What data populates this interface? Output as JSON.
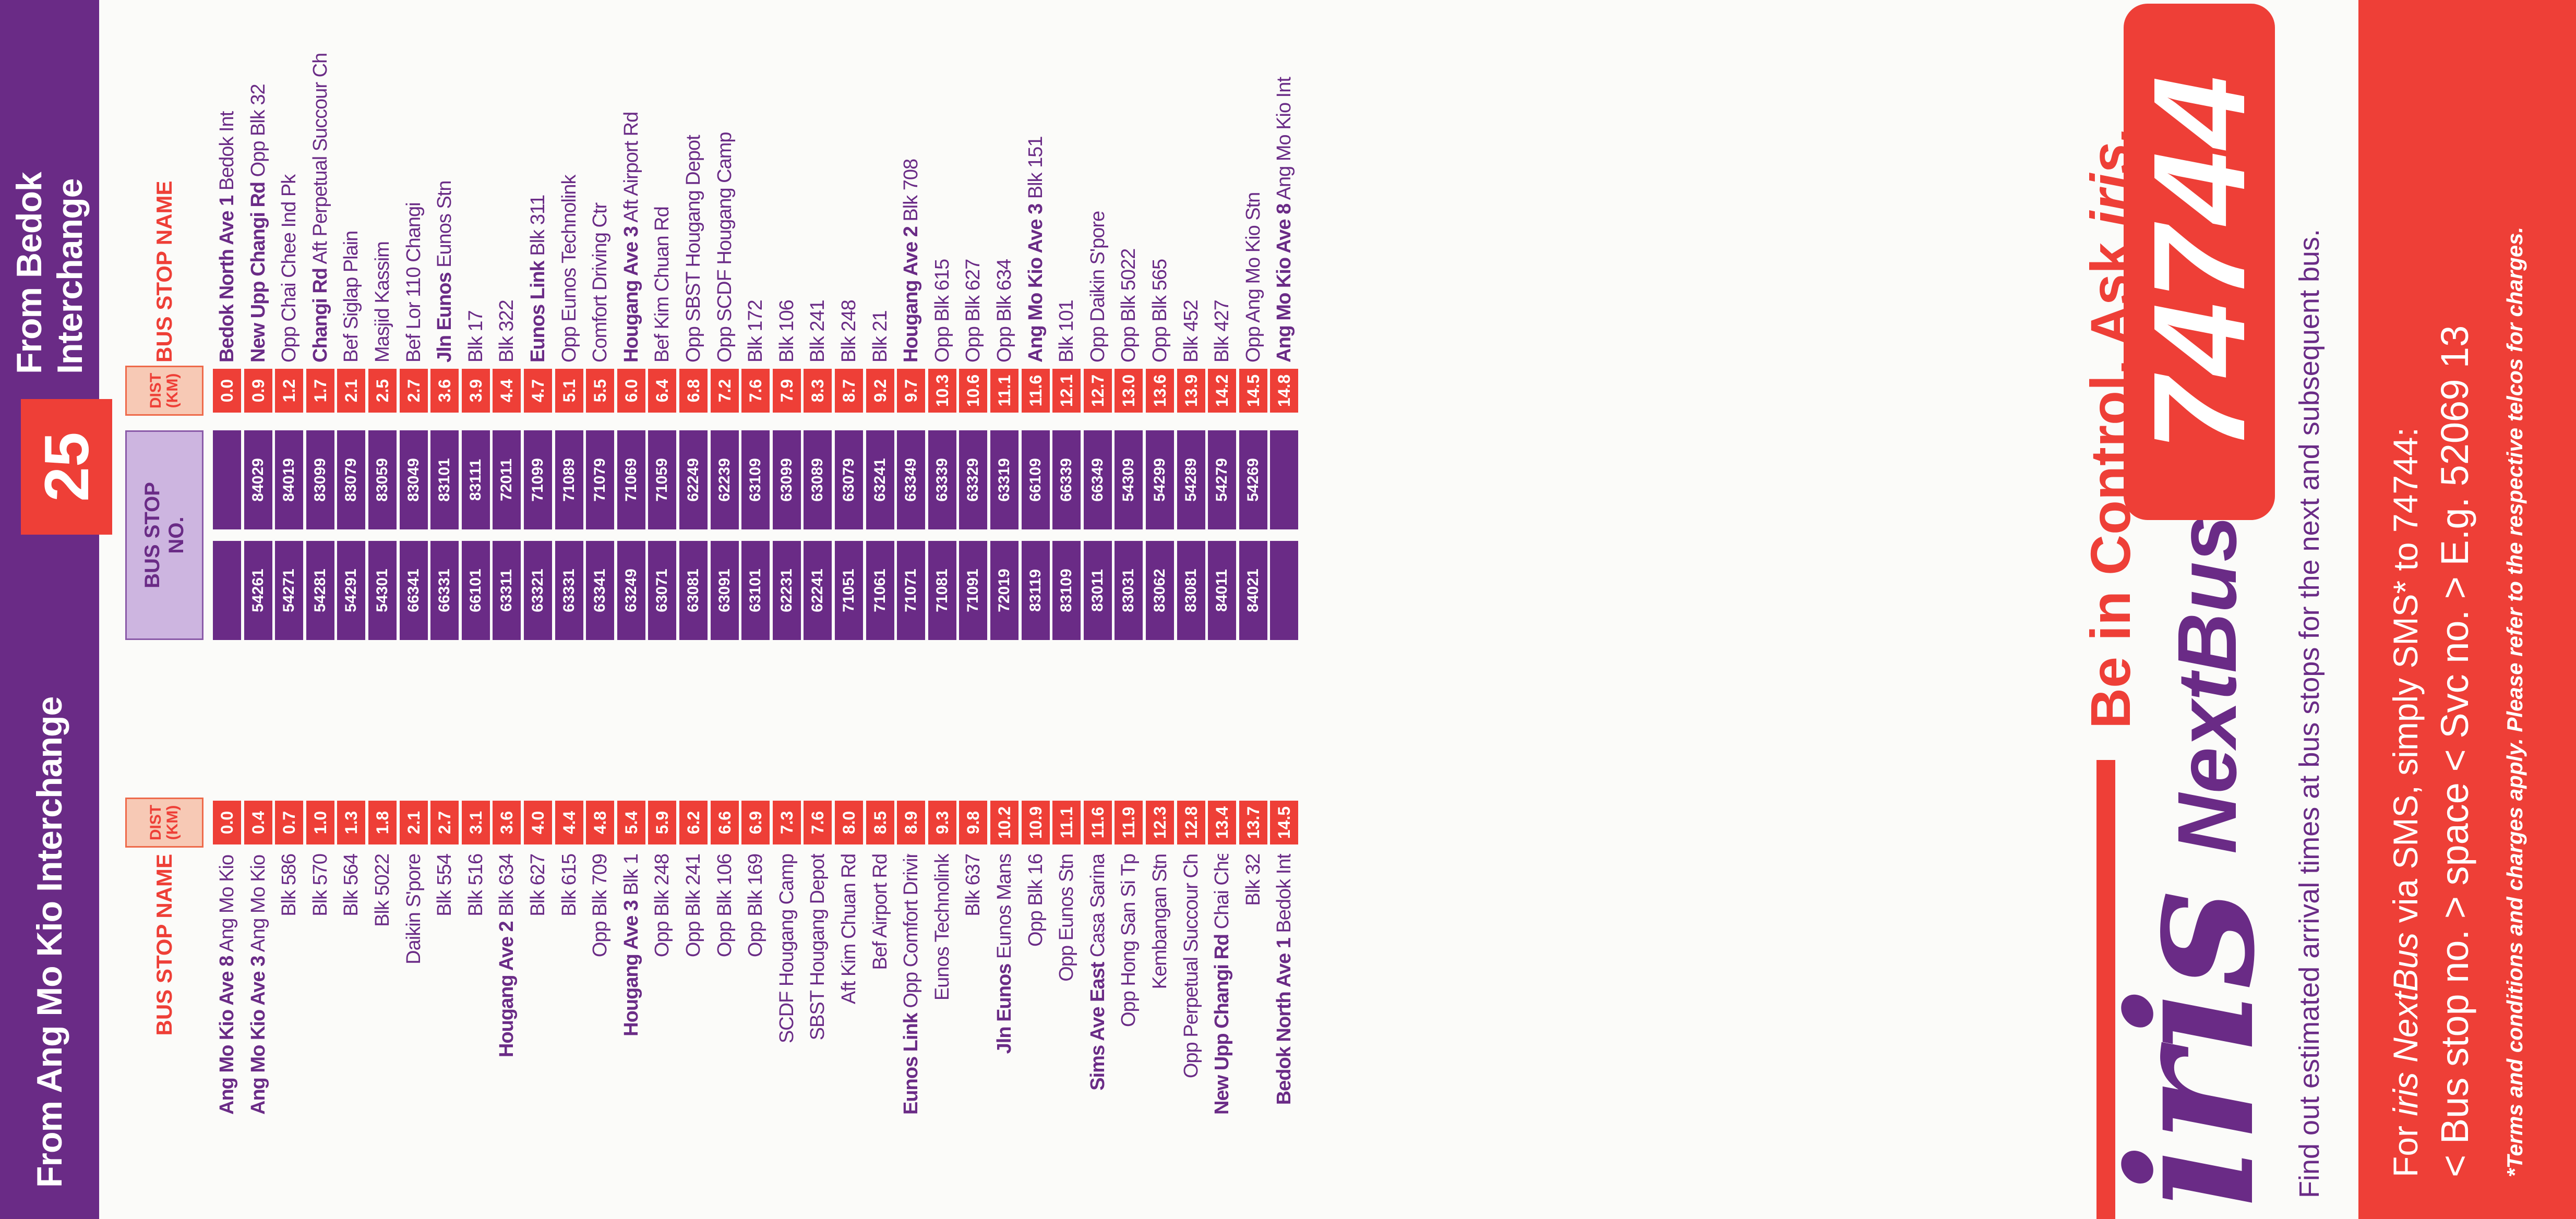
{
  "route": "25",
  "left_heading": "From Ang Mo Kio Interchange",
  "right_heading": "From Bedok Interchange",
  "headers": {
    "bus_stop_name": "BUS STOP NAME",
    "dist": "DIST",
    "km": "(KM)",
    "bus_stop": "BUS STOP",
    "no": "NO."
  },
  "left_rows": [
    {
      "road": "Ang Mo Kio Ave 8",
      "stop": "Ang Mo Kio Int",
      "dist": "0.0",
      "code": ""
    },
    {
      "road": "Ang Mo Kio Ave 3",
      "stop": "Ang Mo Kio Stn",
      "dist": "0.4",
      "code": "54261"
    },
    {
      "road": "",
      "stop": "Blk 586",
      "dist": "0.7",
      "code": "54271"
    },
    {
      "road": "",
      "stop": "Blk 570",
      "dist": "1.0",
      "code": "54281"
    },
    {
      "road": "",
      "stop": "Blk 564",
      "dist": "1.3",
      "code": "54291"
    },
    {
      "road": "",
      "stop": "Blk 5022",
      "dist": "1.8",
      "code": "54301"
    },
    {
      "road": "",
      "stop": "Daikin S'pore",
      "dist": "2.1",
      "code": "66341"
    },
    {
      "road": "",
      "stop": "Blk 554",
      "dist": "2.7",
      "code": "66331"
    },
    {
      "road": "",
      "stop": "Blk 516",
      "dist": "3.1",
      "code": "66101"
    },
    {
      "road": "Hougang Ave 2",
      "stop": "Blk 634",
      "dist": "3.6",
      "code": "63311"
    },
    {
      "road": "",
      "stop": "Blk 627",
      "dist": "4.0",
      "code": "63321"
    },
    {
      "road": "",
      "stop": "Blk 615",
      "dist": "4.4",
      "code": "63331"
    },
    {
      "road": "",
      "stop": "Opp Blk 709",
      "dist": "4.8",
      "code": "63341"
    },
    {
      "road": "Hougang Ave 3",
      "stop": "Blk 1",
      "dist": "5.4",
      "code": "63249"
    },
    {
      "road": "",
      "stop": "Opp Blk 248",
      "dist": "5.9",
      "code": "63071"
    },
    {
      "road": "",
      "stop": "Opp Blk 241",
      "dist": "6.2",
      "code": "63081"
    },
    {
      "road": "",
      "stop": "Opp Blk 106",
      "dist": "6.6",
      "code": "63091"
    },
    {
      "road": "",
      "stop": "Opp Blk 169",
      "dist": "6.9",
      "code": "63101"
    },
    {
      "road": "",
      "stop": "SCDF Hougang Camp",
      "dist": "7.3",
      "code": "62231"
    },
    {
      "road": "",
      "stop": "SBST Hougang Depot",
      "dist": "7.6",
      "code": "62241"
    },
    {
      "road": "",
      "stop": "Aft Kim Chuan Rd",
      "dist": "8.0",
      "code": "71051"
    },
    {
      "road": "",
      "stop": "Bef Airport Rd",
      "dist": "8.5",
      "code": "71061"
    },
    {
      "road": "Eunos Link",
      "stop": "Opp Comfort Driving Ctr",
      "dist": "8.9",
      "code": "71071"
    },
    {
      "road": "",
      "stop": "Eunos Technolink",
      "dist": "9.3",
      "code": "71081"
    },
    {
      "road": "",
      "stop": "Blk 637",
      "dist": "9.8",
      "code": "71091"
    },
    {
      "road": "Jln Eunos",
      "stop": "Eunos Mans",
      "dist": "10.2",
      "code": "72019"
    },
    {
      "road": "",
      "stop": "Opp Blk 16",
      "dist": "10.9",
      "code": "83119"
    },
    {
      "road": "",
      "stop": "Opp Eunos Stn",
      "dist": "11.1",
      "code": "83109"
    },
    {
      "road": "Sims Ave East",
      "stop": "Casa Sarina",
      "dist": "11.6",
      "code": "83011"
    },
    {
      "road": "",
      "stop": "Opp Hong San Si Tp",
      "dist": "11.9",
      "code": "83031"
    },
    {
      "road": "",
      "stop": "Kembangan Stn",
      "dist": "12.3",
      "code": "83062"
    },
    {
      "road": "",
      "stop": "Opp Perpetual Succour Ch",
      "dist": "12.8",
      "code": "83081"
    },
    {
      "road": "New Upp Changi Rd",
      "stop": "Chai Chee Ind Pk",
      "dist": "13.4",
      "code": "84011"
    },
    {
      "road": "",
      "stop": "Blk 32",
      "dist": "13.7",
      "code": "84021"
    },
    {
      "road": "Bedok North Ave 1",
      "stop": "Bedok Int",
      "dist": "14.5",
      "code": ""
    }
  ],
  "right_rows": [
    {
      "road": "Bedok North Ave 1",
      "stop": "Bedok Int",
      "dist": "0.0",
      "code": ""
    },
    {
      "road": "New Upp Changi Rd",
      "stop": "Opp Blk 32",
      "dist": "0.9",
      "code": "84029"
    },
    {
      "road": "",
      "stop": "Opp Chai Chee Ind Pk",
      "dist": "1.2",
      "code": "84019"
    },
    {
      "road": "Changi Rd",
      "stop": "Aft Perpetual Succour Ch",
      "dist": "1.7",
      "code": "83099"
    },
    {
      "road": "",
      "stop": "Bef Siglap Plain",
      "dist": "2.1",
      "code": "83079"
    },
    {
      "road": "",
      "stop": "Masjid Kassim",
      "dist": "2.5",
      "code": "83059"
    },
    {
      "road": "",
      "stop": "Bef Lor 110 Changi",
      "dist": "2.7",
      "code": "83049"
    },
    {
      "road": "Jln Eunos",
      "stop": "Eunos Stn",
      "dist": "3.6",
      "code": "83101"
    },
    {
      "road": "",
      "stop": "Blk 17",
      "dist": "3.9",
      "code": "83111"
    },
    {
      "road": "",
      "stop": "Blk 322",
      "dist": "4.4",
      "code": "72011"
    },
    {
      "road": "Eunos Link",
      "stop": "Blk 311",
      "dist": "4.7",
      "code": "71099"
    },
    {
      "road": "",
      "stop": "Opp Eunos Technolink",
      "dist": "5.1",
      "code": "71089"
    },
    {
      "road": "",
      "stop": "Comfort Driving Ctr",
      "dist": "5.5",
      "code": "71079"
    },
    {
      "road": "Hougang Ave 3",
      "stop": "Aft Airport Rd",
      "dist": "6.0",
      "code": "71069"
    },
    {
      "road": "",
      "stop": "Bef Kim Chuan Rd",
      "dist": "6.4",
      "code": "71059"
    },
    {
      "road": "",
      "stop": "Opp SBST Hougang Depot",
      "dist": "6.8",
      "code": "62249"
    },
    {
      "road": "",
      "stop": "Opp SCDF Hougang Camp",
      "dist": "7.2",
      "code": "62239"
    },
    {
      "road": "",
      "stop": "Blk 172",
      "dist": "7.6",
      "code": "63109"
    },
    {
      "road": "",
      "stop": "Blk 106",
      "dist": "7.9",
      "code": "63099"
    },
    {
      "road": "",
      "stop": "Blk 241",
      "dist": "8.3",
      "code": "63089"
    },
    {
      "road": "",
      "stop": "Blk 248",
      "dist": "8.7",
      "code": "63079"
    },
    {
      "road": "",
      "stop": "Blk 21",
      "dist": "9.2",
      "code": "63241"
    },
    {
      "road": "Hougang Ave 2",
      "stop": "Blk 708",
      "dist": "9.7",
      "code": "63349"
    },
    {
      "road": "",
      "stop": "Opp Blk 615",
      "dist": "10.3",
      "code": "63339"
    },
    {
      "road": "",
      "stop": "Opp Blk 627",
      "dist": "10.6",
      "code": "63329"
    },
    {
      "road": "",
      "stop": "Opp Blk 634",
      "dist": "11.1",
      "code": "63319"
    },
    {
      "road": "Ang Mo Kio Ave 3",
      "stop": "Blk 151",
      "dist": "11.6",
      "code": "66109"
    },
    {
      "road": "",
      "stop": "Blk 101",
      "dist": "12.1",
      "code": "66339"
    },
    {
      "road": "",
      "stop": "Opp Daikin S'pore",
      "dist": "12.7",
      "code": "66349"
    },
    {
      "road": "",
      "stop": "Opp Blk 5022",
      "dist": "13.0",
      "code": "54309"
    },
    {
      "road": "",
      "stop": "Opp Blk 565",
      "dist": "13.6",
      "code": "54299"
    },
    {
      "road": "",
      "stop": "Blk 452",
      "dist": "13.9",
      "code": "54289"
    },
    {
      "road": "",
      "stop": "Blk 427",
      "dist": "14.2",
      "code": "54279"
    },
    {
      "road": "",
      "stop": "Opp Ang Mo Kio Stn",
      "dist": "14.5",
      "code": "54269"
    },
    {
      "road": "Ang Mo Kio Ave 8",
      "stop": "Ang Mo Kio Int",
      "dist": "14.8",
      "code": ""
    }
  ],
  "promo": {
    "tagline_main": "Be in Control. Ask",
    "tagline_brand": "iris.",
    "brand_iris": "iris",
    "brand_nextbus": "NextBus",
    "brand_number": "74744",
    "description": "Find out estimated arrival times at bus stops for the next and subsequent bus.",
    "sms_prefix": "For",
    "sms_brand": "iris NextBus",
    "sms_suffix": "via SMS, simply SMS* to 74744:",
    "sms_format": "< Bus stop no. > space < Svc no. > E.g. 52069 13",
    "terms": "*Terms and conditions and charges apply. Please refer to the respective telcos for charges."
  },
  "colors": {
    "purple": "#6a2b86",
    "red": "#ee3f37",
    "paper": "#fbfbf9"
  }
}
